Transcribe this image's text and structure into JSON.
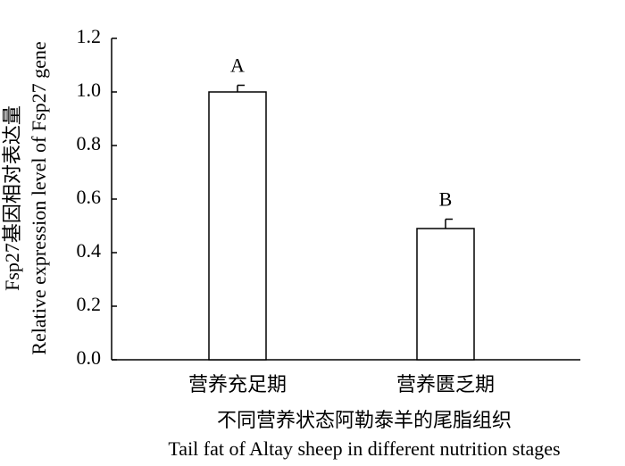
{
  "chart_data": {
    "type": "bar",
    "ylabel": [
      "Fsp27基因相对表达量",
      "Relative expression level of Fsp27 gene"
    ],
    "xlabel": [
      "不同营养状态阿勒泰羊的尾脂组织",
      "Tail fat of Altay sheep in different nutrition stages"
    ],
    "categories": [
      "营养充足期",
      "营养匮乏期"
    ],
    "values": [
      1.0,
      0.49
    ],
    "errors": [
      0.025,
      0.035
    ],
    "annotations": [
      "A",
      "B"
    ],
    "color": "#ffffff",
    "ylim": [
      0,
      1.2
    ],
    "yticks": [
      {
        "value": 0,
        "label": "0.0"
      },
      0.2,
      0.4,
      0.6,
      0.8,
      {
        "value": 1,
        "label": "1.0"
      },
      1.2
    ]
  }
}
